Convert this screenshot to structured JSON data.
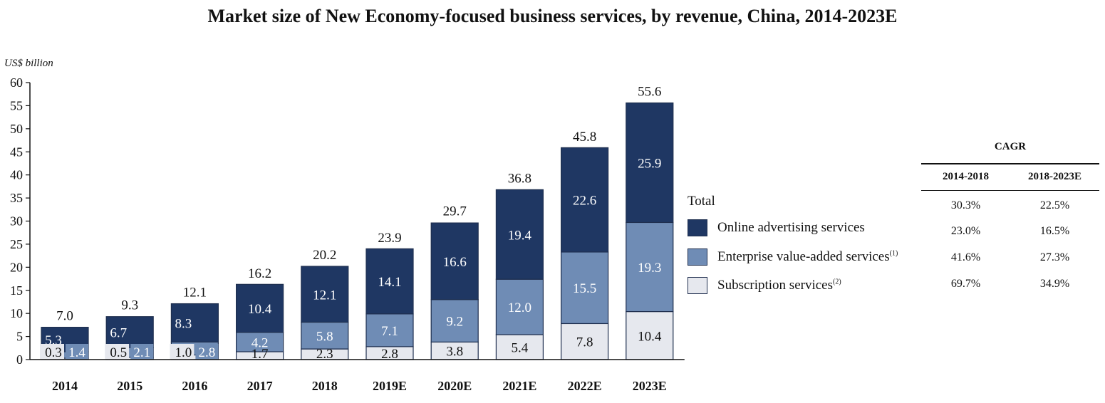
{
  "title": "Market size of New Economy-focused business services, by revenue, China, 2014-2023E",
  "colors": {
    "online_ad": "#1f3763",
    "enterprise": "#6f8cb5",
    "subscription": "#e6e8ee",
    "axis": "#111111"
  },
  "chart_data": {
    "type": "bar",
    "stacked": true,
    "ylabel": "US$ billion",
    "ylim": [
      0,
      60
    ],
    "yticks": [
      "0",
      "5",
      "10",
      "15",
      "20",
      "25",
      "30",
      "35",
      "40",
      "45",
      "50",
      "55",
      "60"
    ],
    "categories": [
      "2014",
      "2015",
      "2016",
      "2017",
      "2018",
      "2019E",
      "2020E",
      "2021E",
      "2022E",
      "2023E"
    ],
    "series": [
      {
        "name": "Subscription services",
        "values": [
          0.3,
          0.5,
          1.0,
          1.7,
          2.3,
          2.8,
          3.8,
          5.4,
          7.8,
          10.4
        ],
        "labels": [
          "0.3",
          "0.5",
          "1.0",
          "1.7",
          "2.3",
          "2.8",
          "3.8",
          "5.4",
          "7.8",
          "10.4"
        ]
      },
      {
        "name": "Enterprise value-added services",
        "values": [
          1.4,
          2.1,
          2.8,
          4.2,
          5.8,
          7.1,
          9.2,
          12.0,
          15.5,
          19.3
        ],
        "labels": [
          "1.4",
          "2.1",
          "2.8",
          "4.2",
          "5.8",
          "7.1",
          "9.2",
          "12.0",
          "15.5",
          "19.3"
        ]
      },
      {
        "name": "Online advertising services",
        "values": [
          5.3,
          6.7,
          8.3,
          10.4,
          12.1,
          14.1,
          16.6,
          19.4,
          22.6,
          25.9
        ],
        "labels": [
          "5.3",
          "6.7",
          "8.3",
          "10.4",
          "12.1",
          "14.1",
          "16.6",
          "19.4",
          "22.6",
          "25.9"
        ]
      }
    ],
    "totals": [
      7.0,
      9.3,
      12.1,
      16.2,
      20.2,
      23.9,
      29.7,
      36.8,
      45.8,
      55.6
    ],
    "total_labels": [
      "7.0",
      "9.3",
      "12.1",
      "16.2",
      "20.2",
      "23.9",
      "29.7",
      "36.8",
      "45.8",
      "55.6"
    ]
  },
  "legend": {
    "total": "Total",
    "online_ad": "Online advertising services",
    "enterprise": "Enterprise value-added services",
    "enterprise_note": "(1)",
    "subscription": "Subscription services",
    "subscription_note": "(2)"
  },
  "cagr": {
    "title": "CAGR",
    "col1": "2014-2018",
    "col2": "2018-2023E",
    "rows": [
      {
        "c1": "30.3%",
        "c2": "22.5%"
      },
      {
        "c1": "23.0%",
        "c2": "16.5%"
      },
      {
        "c1": "41.6%",
        "c2": "27.3%"
      },
      {
        "c1": "69.7%",
        "c2": "34.9%"
      }
    ]
  }
}
